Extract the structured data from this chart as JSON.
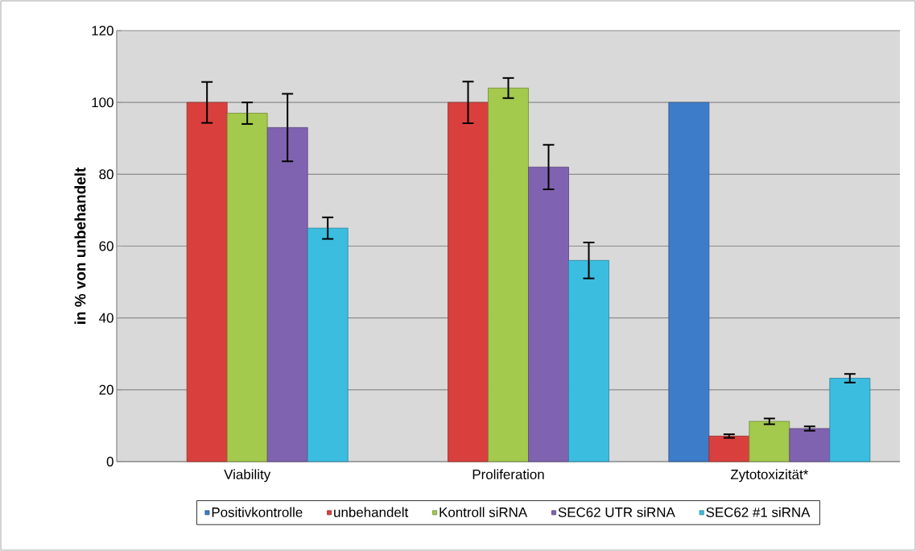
{
  "chart_data": {
    "type": "bar",
    "ylabel": "in % von unbehandelt",
    "categories": [
      "Viability",
      "Proliferation",
      "Zytotoxizität*"
    ],
    "ylim": [
      0,
      120
    ],
    "yticks": [
      0,
      20,
      40,
      60,
      80,
      100,
      120
    ],
    "grid": "y",
    "legend": "bottom",
    "series": [
      {
        "name": "Positivkontrolle",
        "color": "#3d7cc9",
        "values": [
          null,
          null,
          100
        ],
        "errors": [
          null,
          null,
          null
        ]
      },
      {
        "name": "unbehandelt",
        "color": "#d9403d",
        "values": [
          100,
          100,
          7.1
        ],
        "errors": [
          5.7,
          5.8,
          0.5
        ]
      },
      {
        "name": "Kontroll siRNA",
        "color": "#a3c94d",
        "values": [
          97,
          104,
          11.2
        ],
        "errors": [
          [
            94,
            100
          ],
          2.8,
          0.8
        ]
      },
      {
        "name": "SEC62 UTR siRNA",
        "color": "#8063b0",
        "values": [
          93,
          82,
          9.2
        ],
        "errors": [
          9.4,
          6.2,
          0.6
        ]
      },
      {
        "name": "SEC62 #1 siRNA",
        "color": "#3bbde0",
        "values": [
          65,
          56,
          23.2
        ],
        "errors": [
          3,
          5,
          1.2
        ]
      }
    ]
  }
}
